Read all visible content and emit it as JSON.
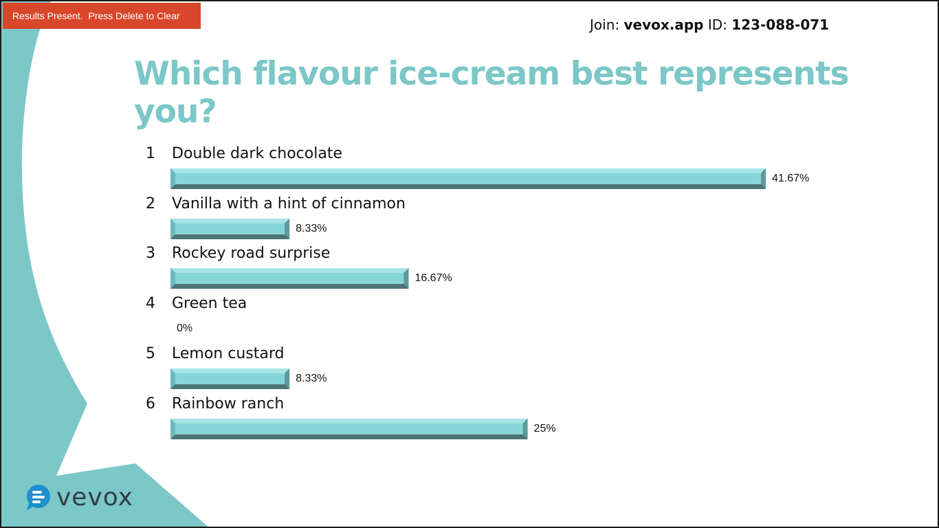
{
  "status_banner": "Results Present.  Press Delete to Clear",
  "join": {
    "prefix": "Join: ",
    "site": "vevox.app",
    "id_label": " ID: ",
    "id": "123-088-071"
  },
  "brand": {
    "name": "vevox",
    "logo_icon": "speech-bubble-logo-icon"
  },
  "colors": {
    "accent": "#7cc7c8",
    "bar_top": "#86d6d9",
    "bar_bottom": "#4d7375",
    "banner": "#d9472b"
  },
  "chart_data": {
    "type": "bar",
    "orientation": "horizontal",
    "title": "Which flavour ice-cream best represents you?",
    "categories": [
      "Double dark chocolate",
      "Vanilla with a hint of cinnamon",
      "Rockey road surprise",
      "Green tea",
      "Lemon custard",
      "Rainbow ranch"
    ],
    "numbers": [
      "1",
      "2",
      "3",
      "4",
      "5",
      "6"
    ],
    "values": [
      41.67,
      8.33,
      16.67,
      0,
      8.33,
      25
    ],
    "value_labels": [
      "41.67%",
      "8.33%",
      "16.67%",
      "0%",
      "8.33%",
      "25%"
    ],
    "xlim": [
      0,
      100
    ],
    "grid": false,
    "legend": "none"
  }
}
